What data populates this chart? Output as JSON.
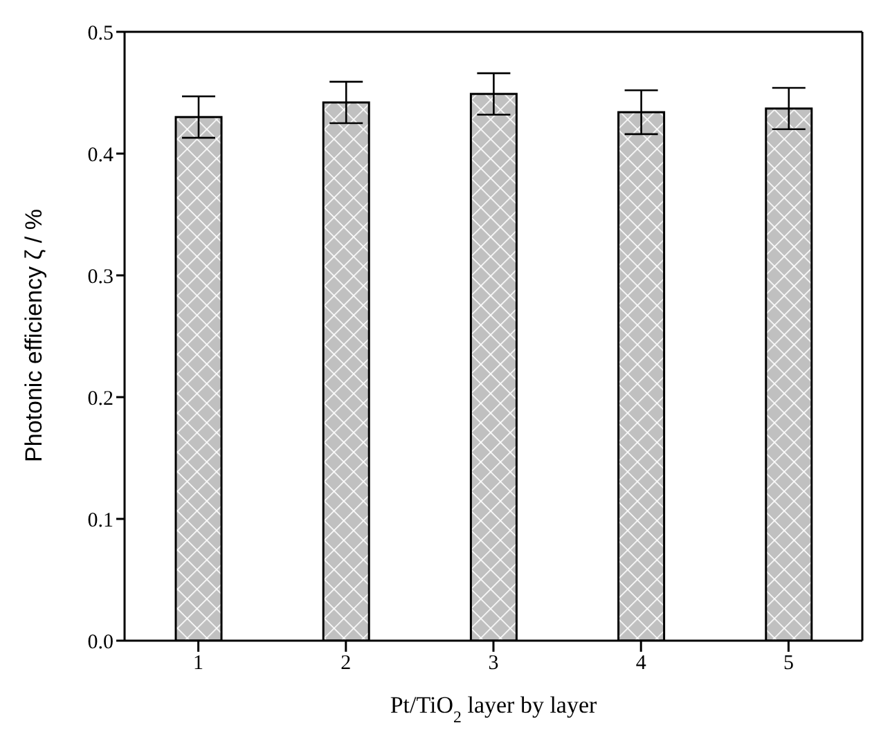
{
  "chart_data": {
    "type": "bar",
    "xlabel": "Pt/TiO$_{2}$ layer by layer",
    "ylabel": "Photonic efficiency ζ / %",
    "categories": [
      "1",
      "2",
      "3",
      "4",
      "5"
    ],
    "values": [
      0.43,
      0.442,
      0.449,
      0.434,
      0.437
    ],
    "errors": [
      0.017,
      0.017,
      0.017,
      0.018,
      0.017
    ],
    "color": "#c0c0c0",
    "ylim": [
      0,
      0.5
    ],
    "yticks": [
      "0.0",
      0.1,
      0.2,
      0.3,
      0.4,
      0.5
    ],
    "grid": false,
    "legend": false
  }
}
